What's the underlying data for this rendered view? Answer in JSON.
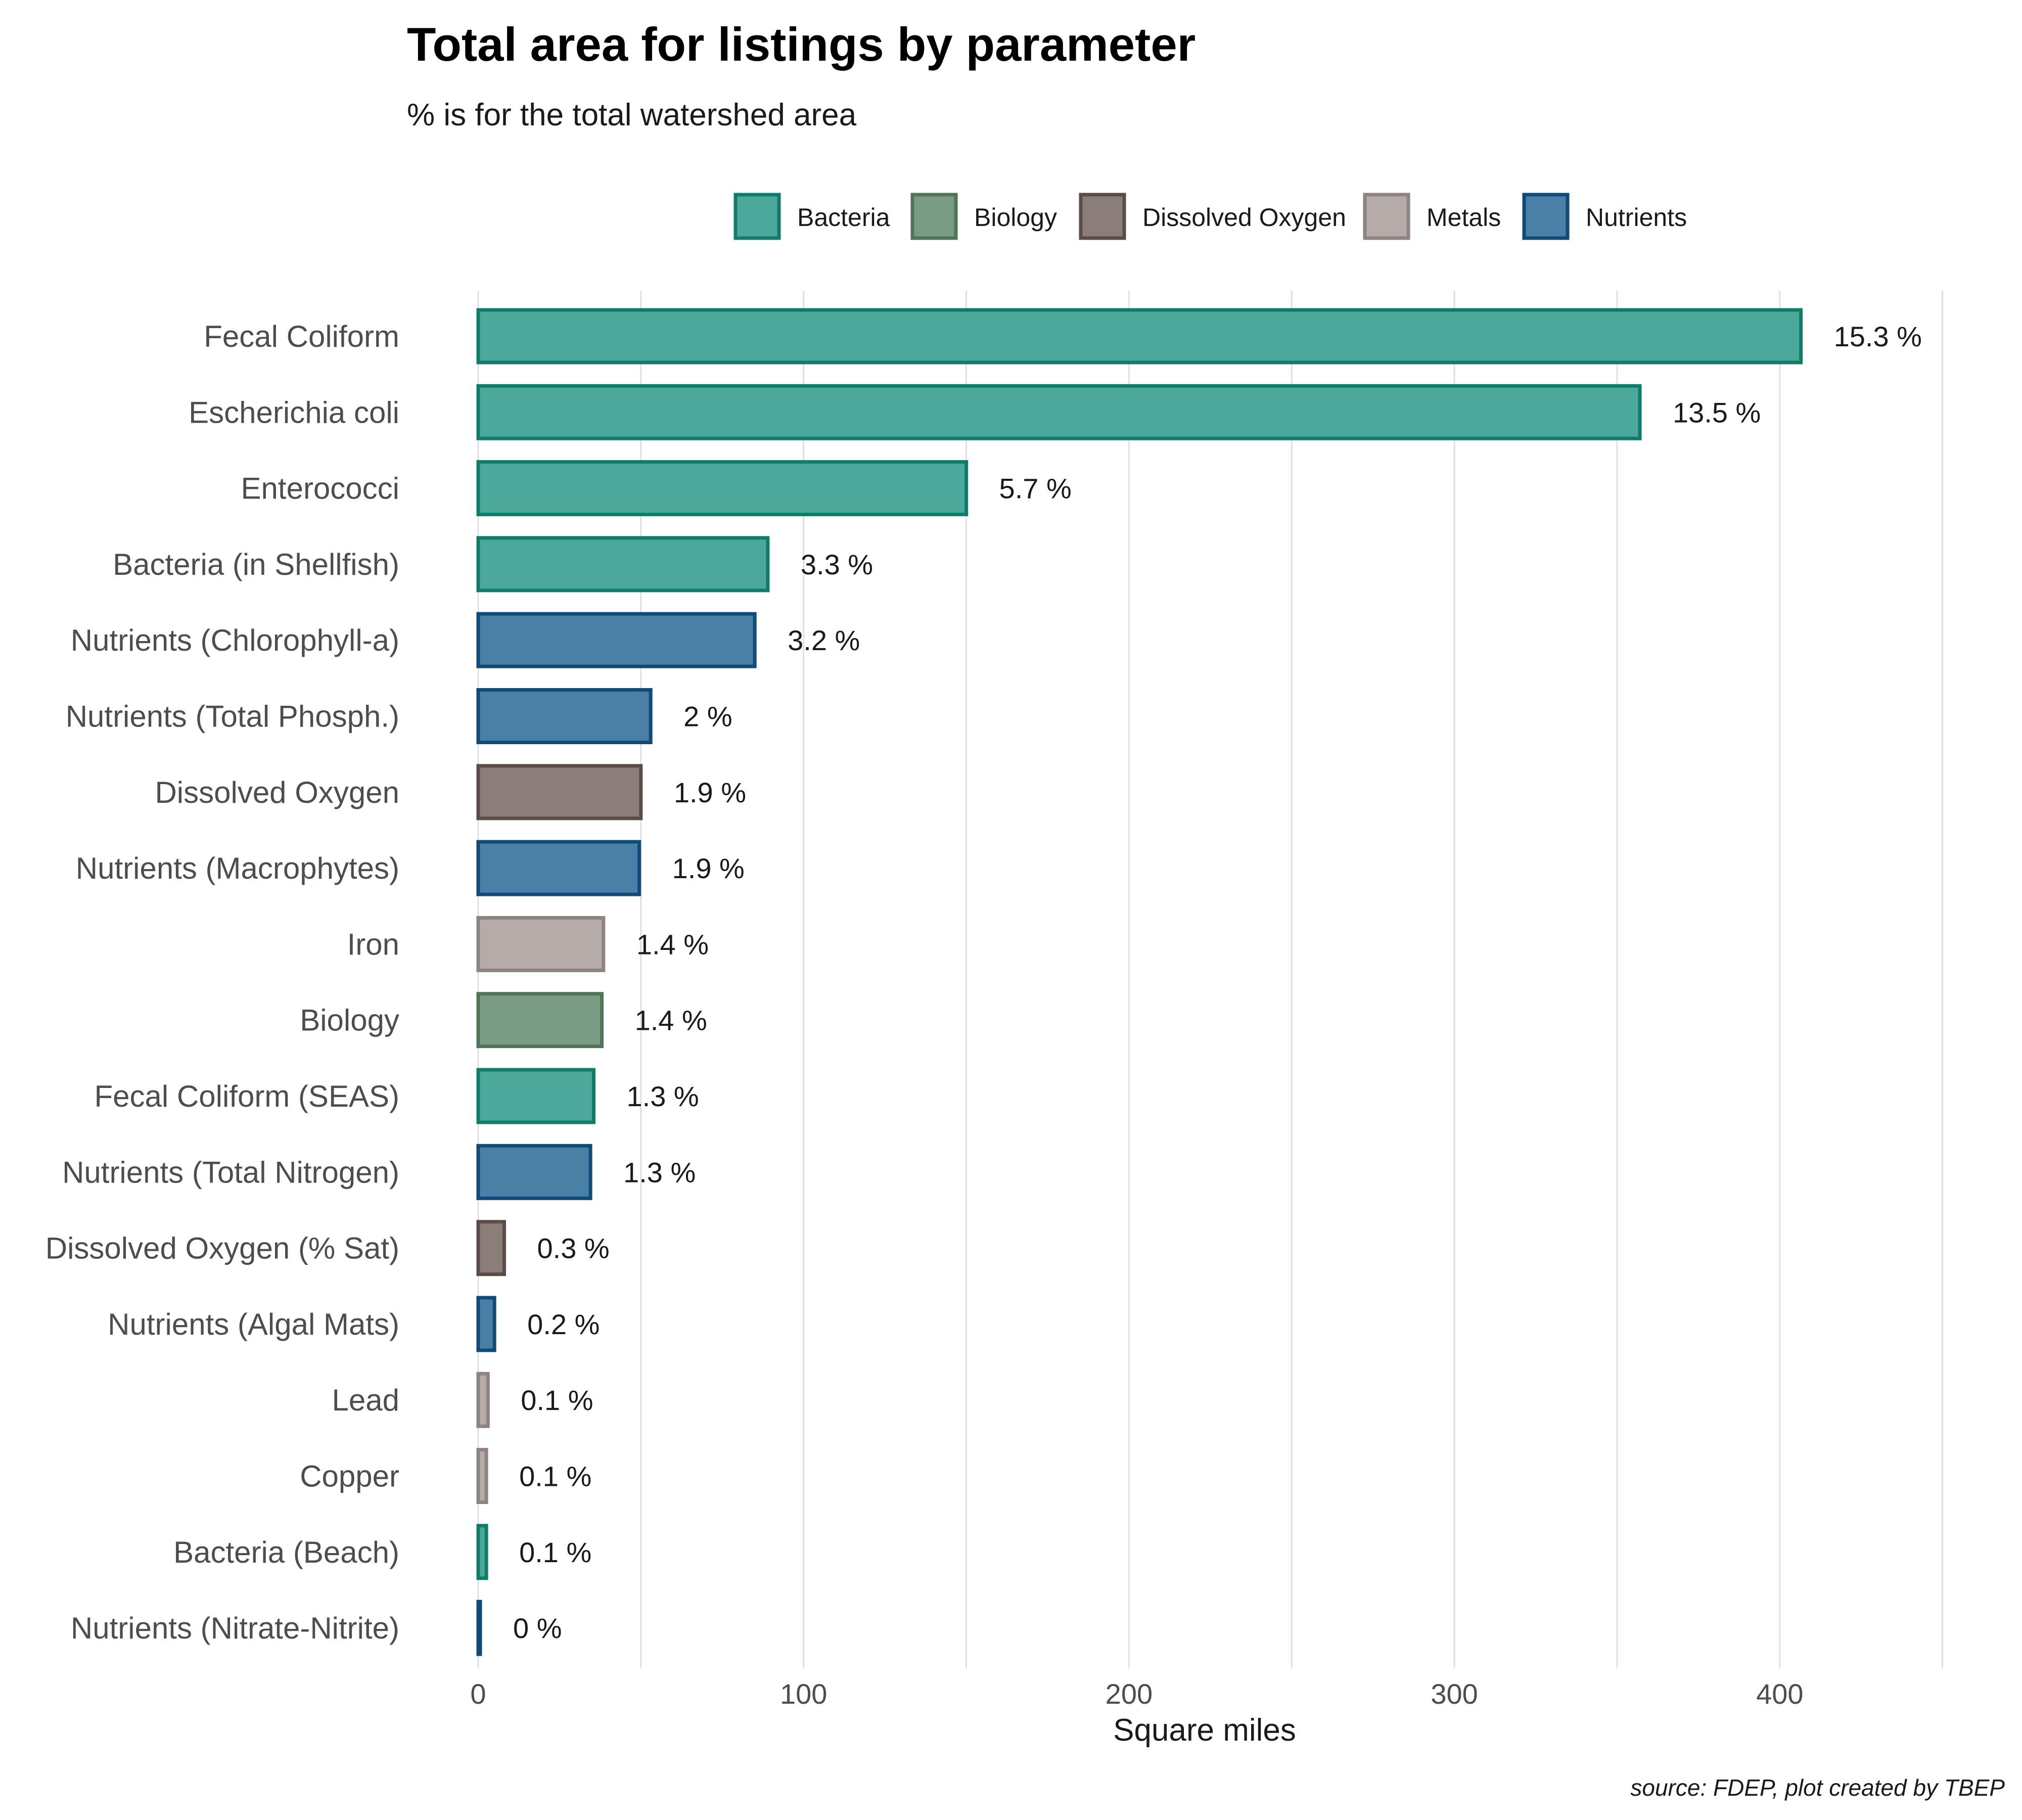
{
  "chart_data": {
    "type": "bar",
    "orientation": "horizontal",
    "title": "Total area for listings by parameter",
    "subtitle": "% is for the total watershed area",
    "xlabel": "Square miles",
    "ylabel": "",
    "caption": "source: FDEP, plot created by TBEP",
    "xlim": [
      0,
      450
    ],
    "xticks": [
      0,
      100,
      200,
      300,
      400
    ],
    "grid": true,
    "legend_position": "top",
    "legend": [
      {
        "name": "Bacteria",
        "fill": "#4ca89a",
        "stroke": "#127c6a"
      },
      {
        "name": "Biology",
        "fill": "#7a9b84",
        "stroke": "#4f7556"
      },
      {
        "name": "Dissolved Oxygen",
        "fill": "#8b7e7a",
        "stroke": "#5c4c48"
      },
      {
        "name": "Metals",
        "fill": "#b5aba8",
        "stroke": "#8e8380"
      },
      {
        "name": "Nutrients",
        "fill": "#4b80a6",
        "stroke": "#0f4a78"
      }
    ],
    "bars": [
      {
        "category": "Fecal Coliform",
        "group": "Bacteria",
        "value": 406.5,
        "label": "15.3 %"
      },
      {
        "category": "Escherichia coli",
        "group": "Bacteria",
        "value": 357,
        "label": "13.5 %"
      },
      {
        "category": "Enterococci",
        "group": "Bacteria",
        "value": 150,
        "label": "5.7 %"
      },
      {
        "category": "Bacteria (in Shellfish)",
        "group": "Bacteria",
        "value": 89,
        "label": "3.3 %"
      },
      {
        "category": "Nutrients (Chlorophyll-a)",
        "group": "Nutrients",
        "value": 85,
        "label": "3.2 %"
      },
      {
        "category": "Nutrients (Total Phosph.)",
        "group": "Nutrients",
        "value": 53,
        "label": "2 %"
      },
      {
        "category": "Dissolved Oxygen",
        "group": "Dissolved Oxygen",
        "value": 50,
        "label": "1.9 %"
      },
      {
        "category": "Nutrients (Macrophytes)",
        "group": "Nutrients",
        "value": 49.5,
        "label": "1.9 %"
      },
      {
        "category": "Iron",
        "group": "Metals",
        "value": 38.5,
        "label": "1.4 %"
      },
      {
        "category": "Biology",
        "group": "Biology",
        "value": 38,
        "label": "1.4 %"
      },
      {
        "category": "Fecal Coliform (SEAS)",
        "group": "Bacteria",
        "value": 35.5,
        "label": "1.3 %"
      },
      {
        "category": "Nutrients (Total Nitrogen)",
        "group": "Nutrients",
        "value": 34.5,
        "label": "1.3 %"
      },
      {
        "category": "Dissolved Oxygen (% Sat)",
        "group": "Dissolved Oxygen",
        "value": 8,
        "label": "0.3 %"
      },
      {
        "category": "Nutrients (Algal Mats)",
        "group": "Nutrients",
        "value": 5,
        "label": "0.2 %"
      },
      {
        "category": "Lead",
        "group": "Metals",
        "value": 3,
        "label": "0.1 %"
      },
      {
        "category": "Copper",
        "group": "Metals",
        "value": 2.5,
        "label": "0.1 %"
      },
      {
        "category": "Bacteria (Beach)",
        "group": "Bacteria",
        "value": 2.5,
        "label": "0.1 %"
      },
      {
        "category": "Nutrients (Nitrate-Nitrite)",
        "group": "Nutrients",
        "value": 0.5,
        "label": "0 %"
      }
    ]
  }
}
